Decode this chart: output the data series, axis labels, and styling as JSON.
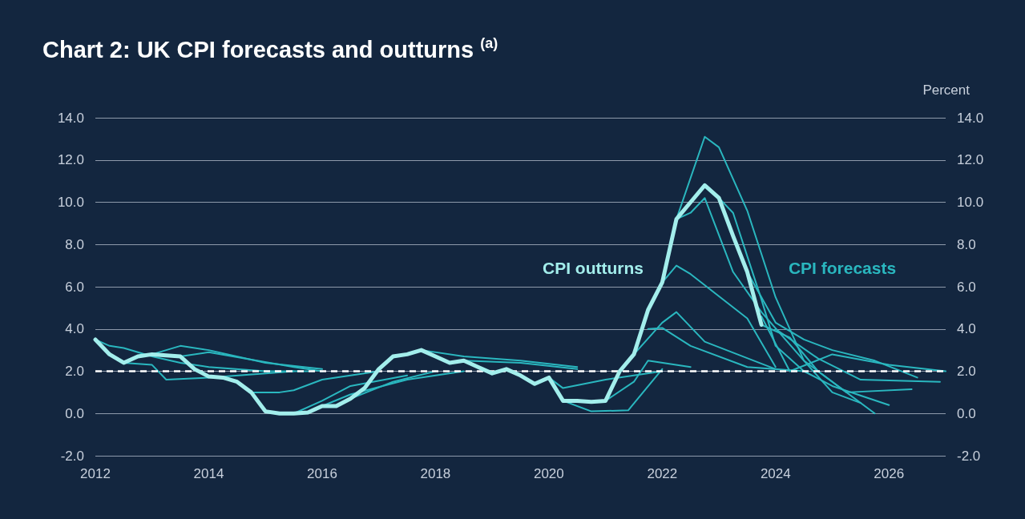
{
  "chart_data": {
    "type": "line",
    "title": "Chart 2: UK CPI forecasts and outturns $^{(a)}$",
    "y2label": "Percent",
    "xlim": [
      2012,
      2027
    ],
    "xticks": [
      2012,
      2014,
      2016,
      2018,
      2020,
      2022,
      2024,
      2026
    ],
    "ylim": [
      -2,
      14
    ],
    "yticks": [
      {
        "value": -2,
        "label": "-2.0"
      },
      {
        "value": 0,
        "label": "0.0"
      },
      {
        "value": 2,
        "label": "2.0"
      },
      {
        "value": 4,
        "label": "4.0"
      },
      {
        "value": 6,
        "label": "6.0"
      },
      {
        "value": 8,
        "label": "8.0"
      },
      {
        "value": 10,
        "label": "10.0"
      },
      {
        "value": 12,
        "label": "12.0"
      },
      {
        "value": 14,
        "label": "14.0"
      }
    ],
    "y2lim": [
      -2,
      14
    ],
    "y2ticks": [
      {
        "value": -2,
        "label": "-2.0"
      },
      {
        "value": 0,
        "label": "0.0"
      },
      {
        "value": 2,
        "label": "2.0"
      },
      {
        "value": 4,
        "label": "4.0"
      },
      {
        "value": 6,
        "label": "6.0"
      },
      {
        "value": 8,
        "label": "8.0"
      },
      {
        "value": 10,
        "label": "10.0"
      },
      {
        "value": 12,
        "label": "12.0"
      },
      {
        "value": 14,
        "label": "14.0"
      }
    ],
    "grid": "y",
    "legend": false,
    "marker": "none",
    "line_style": "solid",
    "ref_lines": [
      {
        "axis": "y",
        "value": 2,
        "color": "#ffffff",
        "line_style": "dashed"
      }
    ],
    "series": [
      {
        "name": "CPI outturns",
        "color": "#a3eeec",
        "x": [
          2012,
          2012.25,
          2012.5,
          2012.75,
          2013,
          2013.25,
          2013.5,
          2013.75,
          2014,
          2014.25,
          2014.5,
          2014.75,
          2015,
          2015.25,
          2015.5,
          2015.75,
          2016,
          2016.25,
          2016.5,
          2016.75,
          2017,
          2017.25,
          2017.5,
          2017.75,
          2018,
          2018.25,
          2018.5,
          2018.75,
          2019,
          2019.25,
          2019.5,
          2019.75,
          2020,
          2020.25,
          2020.5,
          2020.75,
          2021,
          2021.25,
          2021.5,
          2021.75,
          2022,
          2022.25,
          2022.5,
          2022.75,
          2023,
          2023.25,
          2023.5,
          2023.75
        ],
        "values": [
          3.5,
          2.8,
          2.4,
          2.7,
          2.8,
          2.75,
          2.7,
          2.1,
          1.75,
          1.7,
          1.5,
          1.0,
          0.1,
          0.0,
          0.0,
          0.05,
          0.35,
          0.35,
          0.7,
          1.2,
          2.1,
          2.7,
          2.8,
          3.0,
          2.7,
          2.4,
          2.5,
          2.2,
          1.9,
          2.1,
          1.8,
          1.4,
          1.7,
          0.6,
          0.6,
          0.55,
          0.6,
          2.0,
          2.8,
          4.9,
          6.2,
          9.2,
          10.0,
          10.8,
          10.2,
          8.4,
          6.7,
          4.2
        ]
      },
      {
        "name": "CPI forecasts",
        "color": "#2ab7bf",
        "x": [
          2012,
          2012.25,
          2012.5,
          2013,
          2013.5,
          2014,
          2015,
          2015.75
        ],
        "values": [
          3.5,
          3.2,
          3.1,
          2.7,
          2.4,
          2.2,
          2.0,
          2.0
        ]
      },
      {
        "color": "#2ab7bf",
        "x": [
          2012.5,
          2013,
          2013.25,
          2014,
          2015,
          2015.5
        ],
        "values": [
          2.4,
          2.3,
          1.6,
          1.7,
          1.9,
          2.0
        ]
      },
      {
        "color": "#2ab7bf",
        "x": [
          2013,
          2013.5,
          2014,
          2015,
          2016
        ],
        "values": [
          2.8,
          3.2,
          3.0,
          2.4,
          2.1
        ]
      },
      {
        "color": "#2ab7bf",
        "x": [
          2013.5,
          2014,
          2015.5,
          2016
        ],
        "values": [
          2.7,
          2.9,
          2.2,
          2.0
        ]
      },
      {
        "color": "#2ab7bf",
        "x": [
          2014.75,
          2015.25,
          2015.5,
          2016,
          2017
        ],
        "values": [
          1.0,
          1.0,
          1.1,
          1.6,
          2.0
        ]
      },
      {
        "color": "#2ab7bf",
        "x": [
          2015.5,
          2016,
          2016.5,
          2017.5
        ],
        "values": [
          0.0,
          0.6,
          1.3,
          1.8
        ]
      },
      {
        "color": "#2ab7bf",
        "x": [
          2016,
          2016.5,
          2017.5,
          2018.5
        ],
        "values": [
          0.35,
          0.9,
          1.6,
          2.0
        ]
      },
      {
        "color": "#2ab7bf",
        "x": [
          2016.5,
          2017.25,
          2018
        ],
        "values": [
          0.7,
          1.5,
          2.0
        ]
      },
      {
        "color": "#2ab7bf",
        "x": [
          2017.75,
          2018.5,
          2019.5,
          2020.5
        ],
        "values": [
          3.0,
          2.7,
          2.5,
          2.2
        ]
      },
      {
        "color": "#2ab7bf",
        "x": [
          2018.5,
          2019.5,
          2020.5
        ],
        "values": [
          2.5,
          2.4,
          2.1
        ]
      },
      {
        "color": "#2ab7bf",
        "x": [
          2020,
          2020.25,
          2021,
          2022
        ],
        "values": [
          1.7,
          1.2,
          1.6,
          2.0
        ]
      },
      {
        "color": "#2ab7bf",
        "x": [
          2020.25,
          2020.75,
          2021.4,
          2022
        ],
        "values": [
          0.6,
          0.1,
          0.15,
          2.1
        ]
      },
      {
        "color": "#2ab7bf",
        "x": [
          2021,
          2021.5,
          2021.75,
          2022.5
        ],
        "values": [
          0.6,
          1.5,
          2.5,
          2.2
        ]
      },
      {
        "color": "#2ab7bf",
        "x": [
          2021.5,
          2022,
          2022.25,
          2022.75,
          2024
        ],
        "values": [
          2.8,
          4.3,
          4.8,
          3.4,
          2.1
        ]
      },
      {
        "color": "#2ab7bf",
        "x": [
          2021.75,
          2022,
          2022.5,
          2023.5,
          2024.5
        ],
        "values": [
          4.0,
          4.05,
          3.2,
          2.2,
          2.0
        ]
      },
      {
        "color": "#2ab7bf",
        "x": [
          2022,
          2022.25,
          2022.5,
          2023.5,
          2024
        ],
        "values": [
          6.2,
          7.0,
          6.6,
          4.5,
          2.2
        ]
      },
      {
        "color": "#2ab7bf",
        "x": [
          2022.25,
          2022.5,
          2022.75,
          2023.25,
          2023.75,
          2024.5,
          2025,
          2025.5
        ],
        "values": [
          9.2,
          9.5,
          10.2,
          6.7,
          4.8,
          2.5,
          1.0,
          0.5
        ]
      },
      {
        "color": "#2ab7bf",
        "x": [
          2022.25,
          2022.75,
          2023,
          2023.5,
          2024,
          2024.5,
          2025,
          2025.75
        ],
        "values": [
          9.2,
          13.1,
          12.6,
          9.6,
          5.5,
          2.5,
          1.5,
          0.0
        ]
      },
      {
        "color": "#2ab7bf",
        "x": [
          2023,
          2023.25,
          2023.75,
          2024,
          2024.5,
          2025,
          2026
        ],
        "values": [
          10.2,
          9.5,
          5.4,
          3.2,
          2.0,
          1.3,
          0.4
        ]
      },
      {
        "color": "#2ab7bf",
        "x": [
          2023.5,
          2024,
          2024.5,
          2025,
          2025.75,
          2026.5
        ],
        "values": [
          6.7,
          4.3,
          3.5,
          3.0,
          2.5,
          1.7
        ]
      },
      {
        "color": "#2ab7bf",
        "x": [
          2023.75,
          2024.25,
          2024.75,
          2025.25,
          2026.4
        ],
        "values": [
          4.2,
          3.6,
          2.0,
          1.0,
          1.15
        ]
      },
      {
        "color": "#2ab7bf",
        "x": [
          2023.75,
          2024.25,
          2025,
          2026,
          2027
        ],
        "values": [
          4.6,
          2.0,
          2.8,
          2.3,
          2.0
        ]
      },
      {
        "color": "#2ab7bf",
        "x": [
          2024,
          2024.75,
          2025.5,
          2026.9
        ],
        "values": [
          4.0,
          2.6,
          1.6,
          1.5
        ]
      }
    ]
  }
}
